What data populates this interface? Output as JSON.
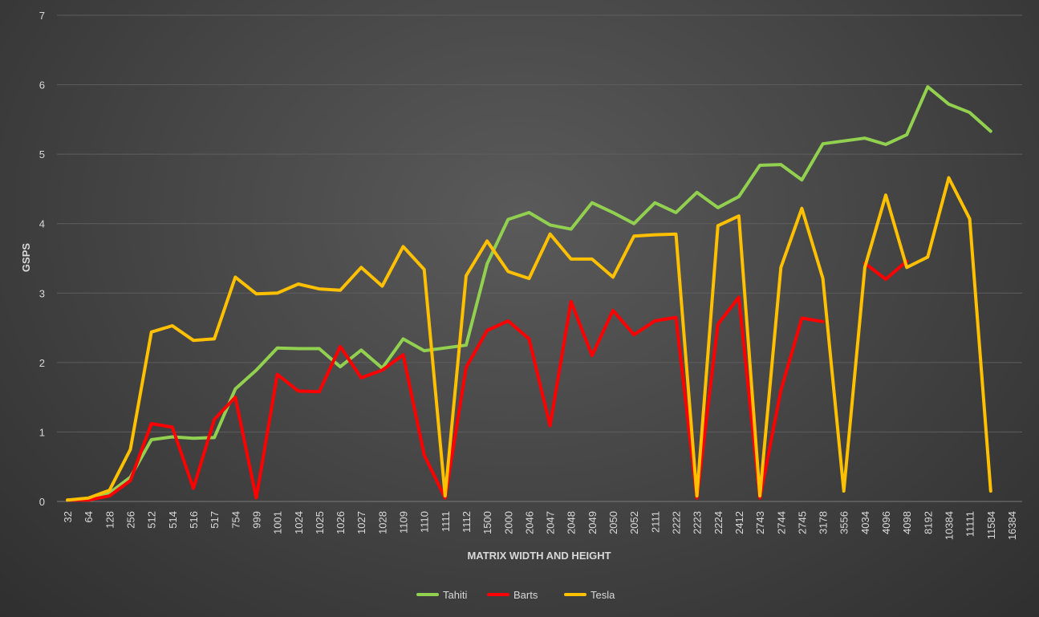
{
  "chart_data": {
    "type": "line",
    "xlabel": "MATRIX WIDTH AND HEIGHT",
    "ylabel": "GSPS",
    "ylim": [
      0,
      7
    ],
    "yticks": [
      0,
      1,
      2,
      3,
      4,
      5,
      6,
      7
    ],
    "grid": "horizontal",
    "legend_position": "bottom",
    "categories": [
      "32",
      "64",
      "128",
      "256",
      "512",
      "514",
      "516",
      "517",
      "754",
      "999",
      "1001",
      "1024",
      "1025",
      "1026",
      "1027",
      "1028",
      "1109",
      "1110",
      "1111",
      "1112",
      "1500",
      "2000",
      "2046",
      "2047",
      "2048",
      "2049",
      "2050",
      "2052",
      "2111",
      "2222",
      "2223",
      "2224",
      "2412",
      "2743",
      "2744",
      "2745",
      "3178",
      "3556",
      "4034",
      "4096",
      "4098",
      "8192",
      "10384",
      "11111",
      "11584",
      "16384"
    ],
    "series": [
      {
        "name": "Tahiti",
        "color": "#92d050",
        "values": [
          0.02,
          0.03,
          0.12,
          0.35,
          0.89,
          0.93,
          0.91,
          0.92,
          1.62,
          1.89,
          2.21,
          2.2,
          2.2,
          1.94,
          2.18,
          1.92,
          2.34,
          2.17,
          2.21,
          2.25,
          3.42,
          4.06,
          4.16,
          3.98,
          3.92,
          4.3,
          4.16,
          4.0,
          4.3,
          4.16,
          4.45,
          4.23,
          4.39,
          4.84,
          4.85,
          4.63,
          5.15,
          5.19,
          5.23,
          5.14,
          5.28,
          5.97,
          5.72,
          5.6,
          5.33,
          null
        ]
      },
      {
        "name": "Barts",
        "color": "#ff0000",
        "values": [
          0.02,
          0.02,
          0.08,
          0.3,
          1.12,
          1.07,
          0.19,
          1.18,
          1.5,
          0.05,
          1.83,
          1.59,
          1.58,
          2.23,
          1.78,
          1.89,
          2.11,
          0.67,
          0.05,
          1.93,
          2.46,
          2.6,
          2.34,
          1.09,
          2.88,
          2.1,
          2.75,
          2.4,
          2.6,
          2.65,
          0.05,
          2.55,
          2.94,
          0.05,
          1.6,
          2.64,
          2.59,
          null,
          3.43,
          3.2,
          3.46,
          null,
          null,
          null,
          null,
          null
        ]
      },
      {
        "name": "Tesla",
        "color": "#ffc000",
        "values": [
          0.02,
          0.05,
          0.16,
          0.75,
          2.44,
          2.53,
          2.32,
          2.34,
          3.23,
          2.99,
          3.0,
          3.13,
          3.06,
          3.04,
          3.37,
          3.1,
          3.67,
          3.34,
          0.08,
          3.25,
          3.75,
          3.31,
          3.21,
          3.85,
          3.49,
          3.49,
          3.23,
          3.82,
          3.84,
          3.85,
          0.08,
          3.97,
          4.11,
          0.08,
          3.37,
          4.22,
          3.21,
          0.15,
          3.37,
          4.41,
          3.37,
          3.52,
          4.66,
          4.07,
          0.15,
          null
        ]
      }
    ]
  }
}
